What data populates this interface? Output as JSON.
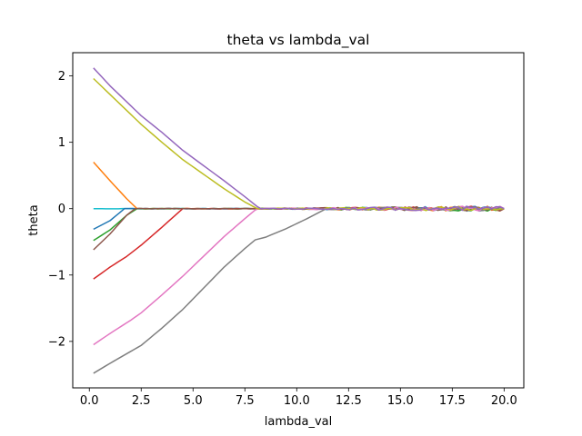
{
  "chart_data": {
    "type": "line",
    "title": "theta vs lambda_val",
    "xlabel": "lambda_val",
    "ylabel": "theta",
    "xlim": [
      -0.8,
      20.95
    ],
    "ylim": [
      -2.7,
      2.35
    ],
    "xticks": [
      0.0,
      2.5,
      5.0,
      7.5,
      10.0,
      12.5,
      15.0,
      17.5,
      20.0
    ],
    "xtick_labels": [
      "0.0",
      "2.5",
      "5.0",
      "7.5",
      "10.0",
      "12.5",
      "15.0",
      "17.5",
      "20.0"
    ],
    "yticks": [
      -2,
      -1,
      0,
      1,
      2
    ],
    "ytick_labels": [
      "−2",
      "−1",
      "0",
      "1",
      "2"
    ],
    "grid": false,
    "legend": "none",
    "series": [
      {
        "color": "#1f77b4",
        "points": [
          [
            0.2,
            -0.31
          ],
          [
            1.0,
            -0.18
          ],
          [
            1.7,
            0.0
          ],
          [
            20.0,
            0.0
          ]
        ]
      },
      {
        "color": "#ff7f0e",
        "points": [
          [
            0.2,
            0.7
          ],
          [
            1.0,
            0.42
          ],
          [
            1.8,
            0.15
          ],
          [
            2.3,
            0.0
          ],
          [
            20.0,
            0.0
          ]
        ]
      },
      {
        "color": "#2ca02c",
        "points": [
          [
            0.2,
            -0.48
          ],
          [
            1.0,
            -0.32
          ],
          [
            1.8,
            -0.1
          ],
          [
            2.3,
            0.0
          ],
          [
            20.0,
            0.0
          ]
        ]
      },
      {
        "color": "#d62728",
        "points": [
          [
            0.2,
            -1.06
          ],
          [
            1.0,
            -0.88
          ],
          [
            1.8,
            -0.72
          ],
          [
            2.5,
            -0.55
          ],
          [
            3.5,
            -0.28
          ],
          [
            4.5,
            0.0
          ],
          [
            20.0,
            0.0
          ]
        ]
      },
      {
        "color": "#9467bd",
        "points": [
          [
            0.2,
            2.12
          ],
          [
            1.0,
            1.85
          ],
          [
            2.0,
            1.55
          ],
          [
            2.5,
            1.4
          ],
          [
            3.5,
            1.15
          ],
          [
            4.5,
            0.88
          ],
          [
            5.5,
            0.65
          ],
          [
            6.5,
            0.42
          ],
          [
            7.5,
            0.18
          ],
          [
            8.1,
            0.03
          ],
          [
            8.3,
            0.0
          ],
          [
            20.0,
            0.0
          ]
        ]
      },
      {
        "color": "#8c564b",
        "points": [
          [
            0.2,
            -0.62
          ],
          [
            1.0,
            -0.38
          ],
          [
            1.8,
            -0.1
          ],
          [
            2.2,
            0.0
          ],
          [
            20.0,
            0.0
          ]
        ]
      },
      {
        "color": "#e377c2",
        "points": [
          [
            0.2,
            -2.05
          ],
          [
            1.0,
            -1.88
          ],
          [
            2.0,
            -1.68
          ],
          [
            2.5,
            -1.57
          ],
          [
            3.5,
            -1.3
          ],
          [
            4.5,
            -1.02
          ],
          [
            5.5,
            -0.72
          ],
          [
            6.5,
            -0.42
          ],
          [
            7.5,
            -0.15
          ],
          [
            8.0,
            -0.02
          ],
          [
            8.2,
            0.0
          ],
          [
            20.0,
            0.0
          ]
        ]
      },
      {
        "color": "#7f7f7f",
        "points": [
          [
            0.2,
            -2.48
          ],
          [
            1.0,
            -2.33
          ],
          [
            2.0,
            -2.15
          ],
          [
            2.5,
            -2.06
          ],
          [
            3.5,
            -1.8
          ],
          [
            4.5,
            -1.52
          ],
          [
            5.5,
            -1.2
          ],
          [
            6.5,
            -0.88
          ],
          [
            7.5,
            -0.6
          ],
          [
            8.0,
            -0.47
          ],
          [
            8.5,
            -0.43
          ],
          [
            9.5,
            -0.3
          ],
          [
            10.5,
            -0.15
          ],
          [
            11.3,
            -0.02
          ],
          [
            11.5,
            0.0
          ],
          [
            20.0,
            0.0
          ]
        ]
      },
      {
        "color": "#bcbd22",
        "points": [
          [
            0.2,
            1.96
          ],
          [
            1.0,
            1.72
          ],
          [
            2.0,
            1.42
          ],
          [
            2.5,
            1.27
          ],
          [
            3.5,
            1.0
          ],
          [
            4.5,
            0.74
          ],
          [
            5.5,
            0.52
          ],
          [
            6.5,
            0.3
          ],
          [
            7.5,
            0.1
          ],
          [
            8.1,
            0.0
          ],
          [
            20.0,
            0.0
          ]
        ]
      },
      {
        "color": "#17becf",
        "points": [
          [
            0.2,
            0.0
          ],
          [
            20.0,
            0.0
          ]
        ]
      }
    ]
  }
}
